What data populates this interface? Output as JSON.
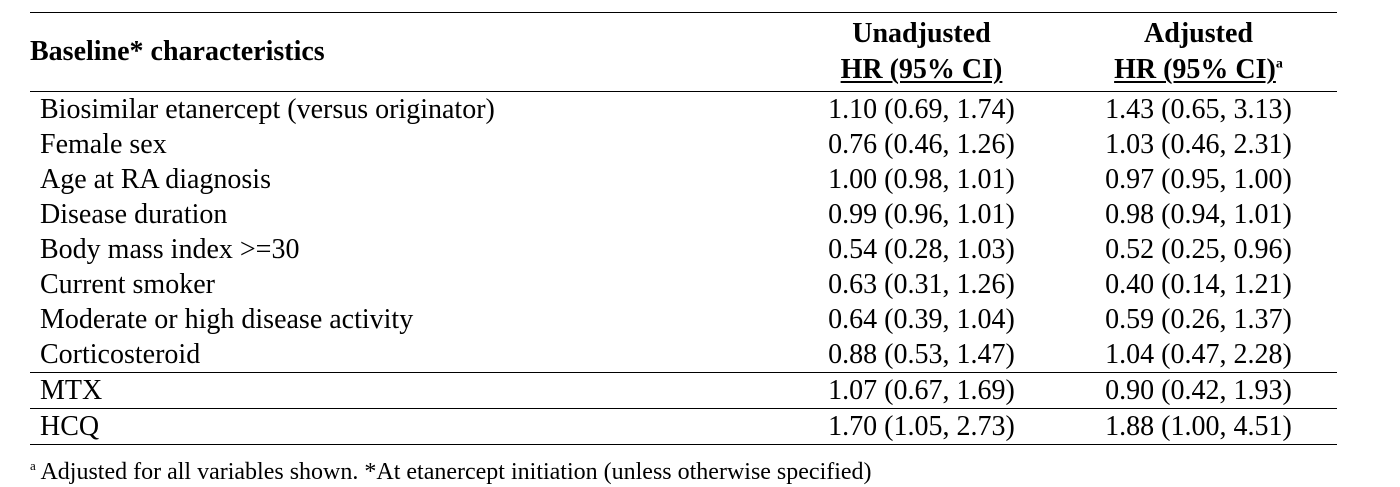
{
  "table": {
    "header": {
      "label": "Baseline* characteristics",
      "col1_line1": "Unadjusted",
      "col1_line2": "HR (95% CI)",
      "col2_line1": "Adjusted",
      "col2_line2": "HR (95% CI)",
      "col2_sup": "a"
    },
    "rows": [
      {
        "label": "Biosimilar etanercept (versus originator)",
        "unadjusted": "1.10 (0.69, 1.74)",
        "adjusted": "1.43 (0.65, 3.13)"
      },
      {
        "label": "Female sex",
        "unadjusted": "0.76 (0.46, 1.26)",
        "adjusted": "1.03 (0.46, 2.31)"
      },
      {
        "label": "Age at RA diagnosis",
        "unadjusted": "1.00 (0.98, 1.01)",
        "adjusted": "0.97 (0.95, 1.00)"
      },
      {
        "label": "Disease duration",
        "unadjusted": "0.99 (0.96, 1.01)",
        "adjusted": "0.98 (0.94, 1.01)"
      },
      {
        "label": "Body mass index >=30",
        "unadjusted": "0.54 (0.28, 1.03)",
        "adjusted": "0.52 (0.25, 0.96)"
      },
      {
        "label": "Current smoker",
        "unadjusted": "0.63 (0.31, 1.26)",
        "adjusted": "0.40 (0.14, 1.21)"
      },
      {
        "label": "Moderate or high disease activity",
        "unadjusted": "0.64 (0.39, 1.04)",
        "adjusted": "0.59 (0.26, 1.37)"
      },
      {
        "label": "Corticosteroid",
        "unadjusted": "0.88 (0.53, 1.47)",
        "adjusted": "1.04 (0.47, 2.28)"
      },
      {
        "label": "MTX",
        "unadjusted": "1.07 (0.67, 1.69)",
        "adjusted": "0.90 (0.42, 1.93)"
      },
      {
        "label": "HCQ",
        "unadjusted": "1.70 (1.05, 2.73)",
        "adjusted": "1.88 (1.00, 4.51)"
      }
    ]
  },
  "footnote": {
    "sup": "a",
    "text": " Adjusted for all variables shown.  *At etanercept initiation (unless otherwise specified)"
  }
}
